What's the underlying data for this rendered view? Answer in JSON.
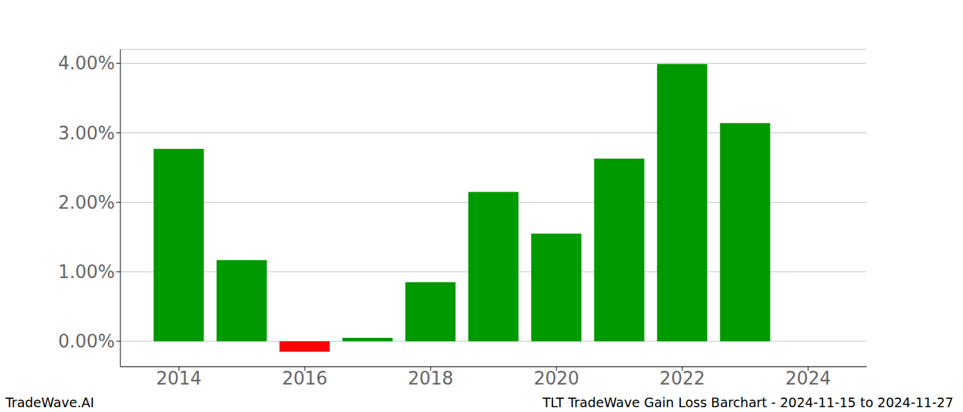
{
  "chart_data": {
    "type": "bar",
    "title": "TLT TradeWave Gain Loss Barchart - 2024-11-15 to 2024-11-27",
    "annotations": [
      "TradeWave.AI"
    ],
    "x": [
      2014,
      2015,
      2016,
      2017,
      2018,
      2019,
      2020,
      2021,
      2022,
      2023
    ],
    "values": [
      2.77,
      1.17,
      -0.15,
      0.05,
      0.85,
      2.15,
      1.55,
      2.63,
      3.99,
      3.14
    ],
    "colors": [
      "#009900",
      "#009900",
      "#ff0000",
      "#009900",
      "#009900",
      "#009900",
      "#009900",
      "#009900",
      "#009900",
      "#009900"
    ],
    "xlim": [
      2013.07,
      2024.93
    ],
    "xticks": [
      2014,
      2016,
      2018,
      2020,
      2022,
      2024
    ],
    "ylim": [
      -0.365,
      4.2
    ],
    "yticks": [
      {
        "value": 0,
        "label": "0.00%"
      },
      {
        "value": 1,
        "label": "1.00%"
      },
      {
        "value": 2,
        "label": "2.00%"
      },
      {
        "value": 3,
        "label": "3.00%"
      },
      {
        "value": 4,
        "label": "4.00%"
      }
    ],
    "grid": true
  }
}
